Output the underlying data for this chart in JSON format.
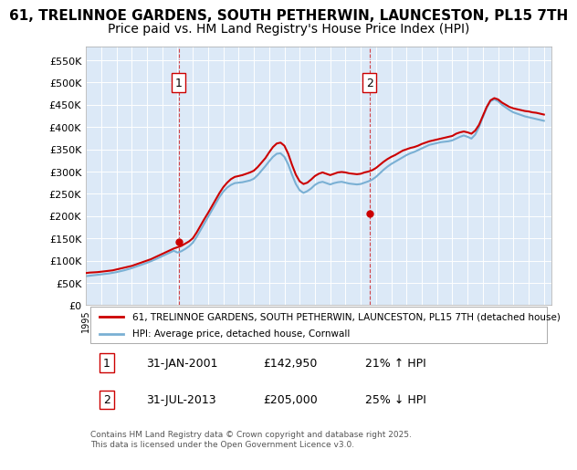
{
  "title": "61, TRELINNOE GARDENS, SOUTH PETHERWIN, LAUNCESTON, PL15 7TH",
  "subtitle": "Price paid vs. HM Land Registry's House Price Index (HPI)",
  "title_fontsize": 11,
  "subtitle_fontsize": 10,
  "ylabel_ticks": [
    "£0",
    "£50K",
    "£100K",
    "£150K",
    "£200K",
    "£250K",
    "£300K",
    "£350K",
    "£400K",
    "£450K",
    "£500K",
    "£550K"
  ],
  "ytick_values": [
    0,
    50000,
    100000,
    150000,
    200000,
    250000,
    300000,
    350000,
    400000,
    450000,
    500000,
    550000
  ],
  "ylim": [
    0,
    580000
  ],
  "background_color": "#dce9f7",
  "plot_bg": "#dce9f7",
  "red_line_color": "#cc0000",
  "blue_line_color": "#7ab0d4",
  "marker1_date": 2001.08,
  "marker1_value": 142950,
  "marker2_date": 2013.58,
  "marker2_value": 205000,
  "annotation1_label": "1",
  "annotation2_label": "2",
  "legend_line1": "61, TRELINNOE GARDENS, SOUTH PETHERWIN, LAUNCESTON, PL15 7TH (detached house)",
  "legend_line2": "HPI: Average price, detached house, Cornwall",
  "table_row1": [
    "1",
    "31-JAN-2001",
    "£142,950",
    "21% ↑ HPI"
  ],
  "table_row2": [
    "2",
    "31-JUL-2013",
    "£205,000",
    "25% ↓ HPI"
  ],
  "footer": "Contains HM Land Registry data © Crown copyright and database right 2025.\nThis data is licensed under the Open Government Licence v3.0.",
  "red_hpi": {
    "x": [
      1995.0,
      1995.25,
      1995.5,
      1995.75,
      1996.0,
      1996.25,
      1996.5,
      1996.75,
      1997.0,
      1997.25,
      1997.5,
      1997.75,
      1998.0,
      1998.25,
      1998.5,
      1998.75,
      1999.0,
      1999.25,
      1999.5,
      1999.75,
      2000.0,
      2000.25,
      2000.5,
      2000.75,
      2001.0,
      2001.25,
      2001.5,
      2001.75,
      2002.0,
      2002.25,
      2002.5,
      2002.75,
      2003.0,
      2003.25,
      2003.5,
      2003.75,
      2004.0,
      2004.25,
      2004.5,
      2004.75,
      2005.0,
      2005.25,
      2005.5,
      2005.75,
      2006.0,
      2006.25,
      2006.5,
      2006.75,
      2007.0,
      2007.25,
      2007.5,
      2007.75,
      2008.0,
      2008.25,
      2008.5,
      2008.75,
      2009.0,
      2009.25,
      2009.5,
      2009.75,
      2010.0,
      2010.25,
      2010.5,
      2010.75,
      2011.0,
      2011.25,
      2011.5,
      2011.75,
      2012.0,
      2012.25,
      2012.5,
      2012.75,
      2013.0,
      2013.25,
      2013.5,
      2013.75,
      2014.0,
      2014.25,
      2014.5,
      2014.75,
      2015.0,
      2015.25,
      2015.5,
      2015.75,
      2016.0,
      2016.25,
      2016.5,
      2016.75,
      2017.0,
      2017.25,
      2017.5,
      2017.75,
      2018.0,
      2018.25,
      2018.5,
      2018.75,
      2019.0,
      2019.25,
      2019.5,
      2019.75,
      2020.0,
      2020.25,
      2020.5,
      2020.75,
      2021.0,
      2021.25,
      2021.5,
      2021.75,
      2022.0,
      2022.25,
      2022.5,
      2022.75,
      2023.0,
      2023.25,
      2023.5,
      2023.75,
      2024.0,
      2024.25,
      2024.5,
      2024.75,
      2025.0
    ],
    "y": [
      72000,
      73000,
      73500,
      74000,
      75000,
      76000,
      77000,
      78000,
      80000,
      82000,
      84000,
      86000,
      88000,
      91000,
      94000,
      97000,
      100000,
      103000,
      107000,
      111000,
      115000,
      119000,
      123000,
      127000,
      130000,
      133000,
      138000,
      143000,
      150000,
      163000,
      178000,
      193000,
      207000,
      222000,
      237000,
      252000,
      265000,
      275000,
      283000,
      288000,
      290000,
      292000,
      295000,
      298000,
      302000,
      310000,
      320000,
      330000,
      343000,
      355000,
      363000,
      365000,
      358000,
      340000,
      315000,
      293000,
      278000,
      272000,
      275000,
      282000,
      290000,
      295000,
      298000,
      295000,
      292000,
      295000,
      298000,
      299000,
      298000,
      296000,
      295000,
      294000,
      295000,
      298000,
      300000,
      303000,
      308000,
      315000,
      322000,
      328000,
      333000,
      337000,
      342000,
      347000,
      350000,
      353000,
      355000,
      358000,
      362000,
      365000,
      368000,
      370000,
      372000,
      374000,
      376000,
      378000,
      380000,
      385000,
      388000,
      390000,
      388000,
      385000,
      392000,
      405000,
      425000,
      445000,
      460000,
      465000,
      462000,
      455000,
      450000,
      445000,
      442000,
      440000,
      438000,
      436000,
      435000,
      433000,
      432000,
      430000,
      428000
    ]
  },
  "blue_hpi": {
    "x": [
      1995.0,
      1995.25,
      1995.5,
      1995.75,
      1996.0,
      1996.25,
      1996.5,
      1996.75,
      1997.0,
      1997.25,
      1997.5,
      1997.75,
      1998.0,
      1998.25,
      1998.5,
      1998.75,
      1999.0,
      1999.25,
      1999.5,
      1999.75,
      2000.0,
      2000.25,
      2000.5,
      2000.75,
      2001.0,
      2001.25,
      2001.5,
      2001.75,
      2002.0,
      2002.25,
      2002.5,
      2002.75,
      2003.0,
      2003.25,
      2003.5,
      2003.75,
      2004.0,
      2004.25,
      2004.5,
      2004.75,
      2005.0,
      2005.25,
      2005.5,
      2005.75,
      2006.0,
      2006.25,
      2006.5,
      2006.75,
      2007.0,
      2007.25,
      2007.5,
      2007.75,
      2008.0,
      2008.25,
      2008.5,
      2008.75,
      2009.0,
      2009.25,
      2009.5,
      2009.75,
      2010.0,
      2010.25,
      2010.5,
      2010.75,
      2011.0,
      2011.25,
      2011.5,
      2011.75,
      2012.0,
      2012.25,
      2012.5,
      2012.75,
      2013.0,
      2013.25,
      2013.5,
      2013.75,
      2014.0,
      2014.25,
      2014.5,
      2014.75,
      2015.0,
      2015.25,
      2015.5,
      2015.75,
      2016.0,
      2016.25,
      2016.5,
      2016.75,
      2017.0,
      2017.25,
      2017.5,
      2017.75,
      2018.0,
      2018.25,
      2018.5,
      2018.75,
      2019.0,
      2019.25,
      2019.5,
      2019.75,
      2020.0,
      2020.25,
      2020.5,
      2020.75,
      2021.0,
      2021.25,
      2021.5,
      2021.75,
      2022.0,
      2022.25,
      2022.5,
      2022.75,
      2023.0,
      2023.25,
      2023.5,
      2023.75,
      2024.0,
      2024.25,
      2024.5,
      2024.75,
      2025.0
    ],
    "y": [
      65000,
      66000,
      67000,
      68000,
      69000,
      70000,
      71000,
      72500,
      74000,
      76000,
      78000,
      80500,
      83000,
      86000,
      89000,
      92000,
      95000,
      98500,
      102000,
      106000,
      110000,
      114000,
      118000,
      122000,
      118000,
      121000,
      126000,
      132000,
      140000,
      153000,
      168000,
      183000,
      198000,
      213000,
      228000,
      243000,
      255000,
      264000,
      270000,
      274000,
      275000,
      276000,
      278000,
      280000,
      284000,
      292000,
      302000,
      312000,
      323000,
      333000,
      340000,
      341000,
      333000,
      316000,
      293000,
      272000,
      258000,
      252000,
      256000,
      262000,
      270000,
      275000,
      277000,
      274000,
      271000,
      274000,
      276000,
      277000,
      275000,
      273000,
      272000,
      271000,
      272000,
      275000,
      278000,
      282000,
      288000,
      296000,
      304000,
      311000,
      317000,
      322000,
      327000,
      332000,
      337000,
      341000,
      344000,
      348000,
      352000,
      356000,
      360000,
      362000,
      364000,
      366000,
      367000,
      368000,
      370000,
      374000,
      378000,
      381000,
      378000,
      374000,
      383000,
      400000,
      422000,
      443000,
      458000,
      462000,
      458000,
      450000,
      444000,
      438000,
      433000,
      430000,
      427000,
      424000,
      422000,
      420000,
      418000,
      416000,
      414000
    ]
  }
}
